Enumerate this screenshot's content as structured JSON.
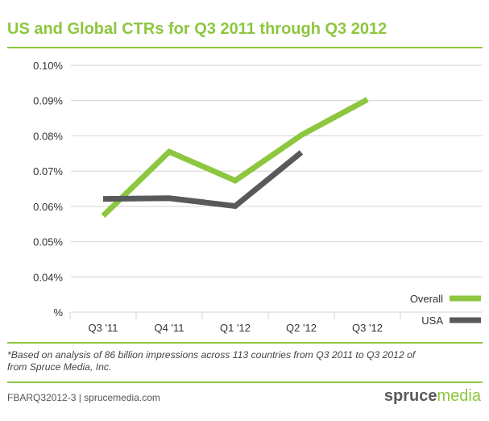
{
  "header": {
    "title": "US and Global CTRs for Q3 2011 through Q3 2012"
  },
  "footnote": {
    "line1": "*Based on analysis of 86 billion impressions across 113 countries from Q3 2011 to Q3 2012 of",
    "line2": "from Spruce Media, Inc."
  },
  "footer": {
    "id_text": "FBARQ32012-3 | sprucemedia.com",
    "brand_part1": "spruce",
    "brand_part2": "media"
  },
  "chart_data": {
    "type": "line",
    "title": "US and Global CTRs for Q3 2011 through Q3 2012",
    "xlabel": "",
    "ylabel": "",
    "categories": [
      "Q3 '11",
      "Q4 '11",
      "Q1 '12",
      "Q2 '12",
      "Q3 '12"
    ],
    "y_ticks": [
      0.03,
      0.04,
      0.05,
      0.06,
      0.07,
      0.08,
      0.09,
      0.1
    ],
    "y_tick_labels": [
      "%",
      "0.04%",
      "0.05%",
      "0.06%",
      "0.07%",
      "0.08%",
      "0.09%",
      "0.10%"
    ],
    "ylim": [
      0.03,
      0.1
    ],
    "grid": true,
    "legend_position": "bottom-right",
    "series": [
      {
        "name": "Overall",
        "color": "#8dc63f",
        "values": [
          0.0573,
          0.0755,
          0.0673,
          0.0802,
          0.0903
        ]
      },
      {
        "name": "USA",
        "color": "#58595b",
        "values": [
          0.0621,
          0.0623,
          0.0601,
          0.0753,
          null
        ]
      }
    ]
  }
}
